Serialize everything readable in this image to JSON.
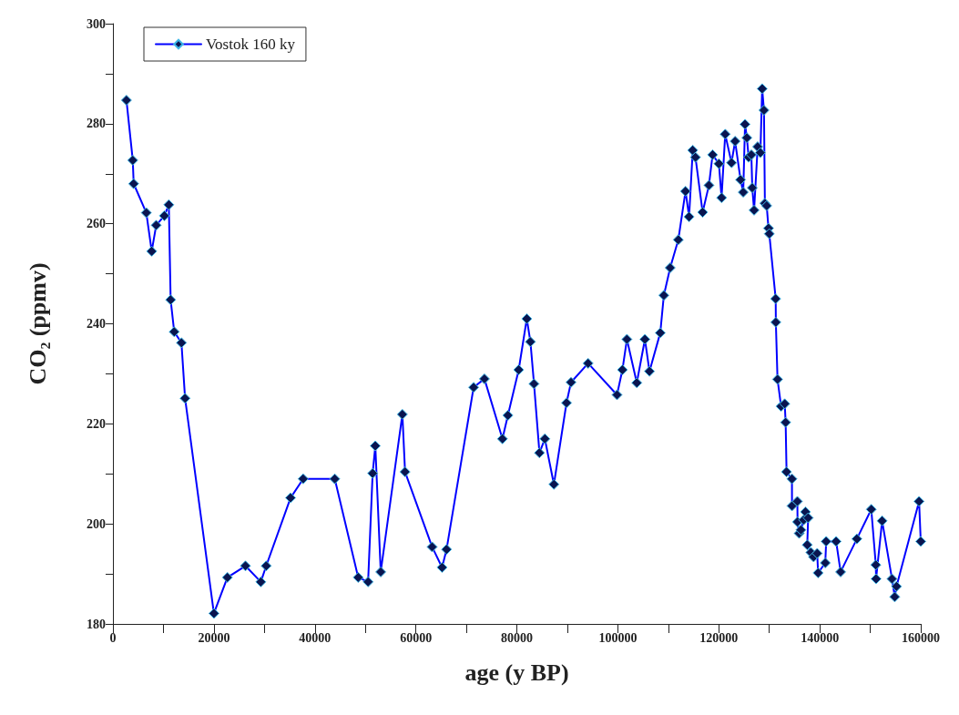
{
  "chart_data": {
    "type": "line",
    "xlabel": "age (y BP)",
    "ylabel": "CO₂ (ppmv)",
    "xlim": [
      0,
      160000
    ],
    "ylim": [
      180,
      300
    ],
    "xticks": [
      0,
      {
        "value": 10000,
        "label": null
      },
      20000,
      {
        "value": 30000,
        "label": null
      },
      40000,
      {
        "value": 50000,
        "label": null
      },
      60000,
      {
        "value": 70000,
        "label": null
      },
      80000,
      {
        "value": 90000,
        "label": null
      },
      100000,
      {
        "value": 110000,
        "label": null
      },
      120000,
      {
        "value": 130000,
        "label": null
      },
      140000,
      {
        "value": 150000,
        "label": null
      },
      160000
    ],
    "yticks": [
      180,
      {
        "value": 190,
        "label": null
      },
      200,
      {
        "value": 210,
        "label": null
      },
      220,
      {
        "value": 230,
        "label": null
      },
      240,
      {
        "value": 250,
        "label": null
      },
      260,
      {
        "value": 270,
        "label": null
      },
      280,
      {
        "value": 290,
        "label": null
      },
      300
    ],
    "grid": false,
    "legend": "top left",
    "marker": "diamond",
    "line_style": "solid",
    "series": [
      {
        "name": "Vostok 160 ky",
        "color": "#0000ff",
        "x": [
          2680,
          3930,
          4110,
          6610,
          7680,
          8570,
          10180,
          11070,
          11430,
          12140,
          13570,
          14290,
          20000,
          22680,
          26250,
          29290,
          30360,
          35180,
          37680,
          43940,
          48580,
          50540,
          51440,
          51970,
          53040,
          57330,
          57860,
          63220,
          65190,
          66080,
          71440,
          73580,
          77150,
          78230,
          80370,
          81970,
          82690,
          83400,
          84480,
          85550,
          87340,
          89840,
          90730,
          94120,
          99840,
          100910,
          101800,
          103760,
          105370,
          106270,
          108410,
          109120,
          110370,
          111980,
          113410,
          114120,
          114840,
          115380,
          116800,
          118050,
          118770,
          120020,
          120550,
          121270,
          122520,
          123230,
          124310,
          124840,
          125200,
          125560,
          125910,
          126450,
          126630,
          126990,
          127700,
          128240,
          128590,
          128950,
          129130,
          129490,
          129840,
          130000,
          131270,
          131300,
          131630,
          132340,
          133060,
          133240,
          133420,
          134490,
          134500,
          135560,
          135600,
          135920,
          136270,
          136810,
          137160,
          137700,
          137520,
          138240,
          138770,
          139490,
          139670,
          141090,
          141270,
          143240,
          144130,
          147350,
          150200,
          151100,
          151150,
          152350,
          154310,
          154850,
          155200,
          159670,
          160000
        ],
        "values": [
          284.7,
          272.7,
          268,
          262.2,
          254.5,
          259.7,
          261.6,
          263.8,
          244.8,
          238.4,
          236.2,
          225.1,
          182.1,
          189.3,
          191.6,
          188.4,
          191.6,
          205.2,
          209,
          209,
          189.3,
          188.4,
          210.1,
          215.6,
          190.4,
          221.9,
          210.4,
          195.4,
          191.3,
          194.9,
          227.3,
          229,
          217,
          221.7,
          230.8,
          241,
          236.4,
          228,
          214.2,
          217,
          207.9,
          224.2,
          228.3,
          232.1,
          225.8,
          230.8,
          236.9,
          228.2,
          236.9,
          230.5,
          238.2,
          245.7,
          251.2,
          256.8,
          266.5,
          261.4,
          274.7,
          273.3,
          262.3,
          267.7,
          273.8,
          272,
          265.2,
          277.9,
          272.2,
          276.5,
          268.8,
          266.3,
          279.9,
          277.2,
          273.3,
          273.8,
          267.2,
          262.7,
          275.4,
          274.2,
          287,
          282.7,
          264.1,
          263.6,
          259.1,
          258,
          245,
          240.3,
          228.9,
          223.5,
          224,
          220.3,
          210.4,
          209,
          203.6,
          204.5,
          200.4,
          198.1,
          198.8,
          200.8,
          202.4,
          201.2,
          195.8,
          194.3,
          193.4,
          194.1,
          190.2,
          192.2,
          196.5,
          196.5,
          190.4,
          197,
          202.9,
          191.8,
          189,
          200.6,
          189,
          185.4,
          187.5,
          204.5,
          196.5
        ]
      }
    ]
  }
}
